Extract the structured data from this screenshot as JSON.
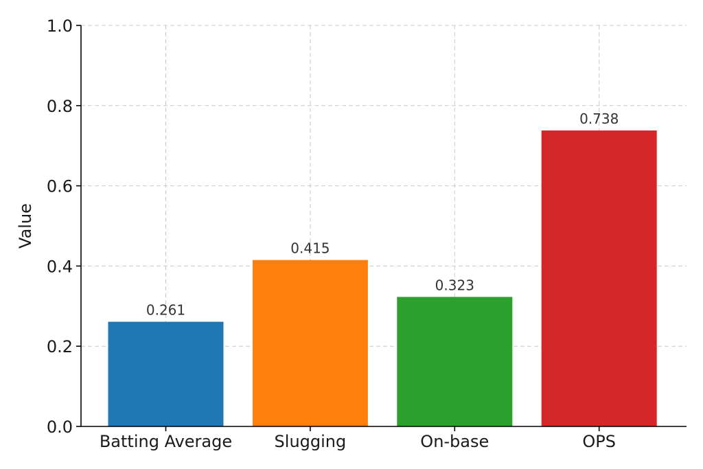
{
  "chart_data": {
    "type": "bar",
    "categories": [
      "Batting Average",
      "Slugging",
      "On-base",
      "OPS"
    ],
    "values": [
      0.261,
      0.415,
      0.323,
      0.738
    ],
    "value_labels": [
      "0.261",
      "0.415",
      "0.323",
      "0.738"
    ],
    "colors": [
      "#1f77b4",
      "#ff7f0e",
      "#2ca02c",
      "#d62728"
    ],
    "title": "",
    "xlabel": "",
    "ylabel": "Value",
    "ylim": [
      0,
      1.0
    ],
    "yticks": [
      0.0,
      0.2,
      0.4,
      0.6,
      0.8,
      1.0
    ],
    "ytick_labels": [
      "0.0",
      "0.2",
      "0.4",
      "0.6",
      "0.8",
      "1.0"
    ],
    "grid": true,
    "legend": "none"
  }
}
